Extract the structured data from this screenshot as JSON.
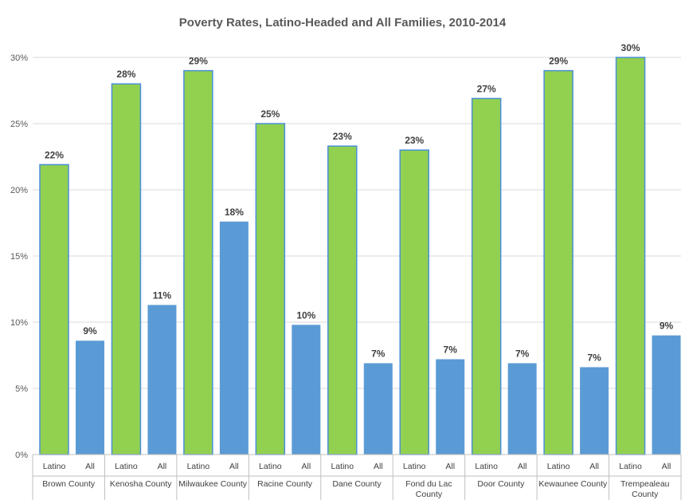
{
  "chart_data": {
    "type": "bar",
    "title": "Poverty Rates, Latino-Headed and All Families, 2010-2014",
    "groups": [
      "Brown County",
      "Kenosha County",
      "Milwaukee County",
      "Racine County",
      "Dane County",
      "Fond du Lac County",
      "Door County",
      "Kewaunee County",
      "Trempealeau County"
    ],
    "series": [
      {
        "name": "Latino",
        "color": "#92d050",
        "values": [
          21.9,
          28.0,
          29.0,
          25.0,
          23.3,
          23.0,
          26.9,
          29.0,
          30.0
        ],
        "labels": [
          "22%",
          "28%",
          "29%",
          "25%",
          "23%",
          "23%",
          "27%",
          "29%",
          "30%"
        ]
      },
      {
        "name": "All",
        "color": "#5b9bd5",
        "values": [
          8.6,
          11.3,
          17.6,
          9.8,
          6.9,
          7.2,
          6.9,
          6.6,
          9.0
        ],
        "labels": [
          "9%",
          "11%",
          "18%",
          "10%",
          "7%",
          "7%",
          "7%",
          "7%",
          "9%"
        ]
      }
    ],
    "ylim": [
      0,
      30
    ],
    "yticks": [
      "0%",
      "5%",
      "10%",
      "15%",
      "20%",
      "25%",
      "30%"
    ],
    "grid": true,
    "colors": {
      "latino": "#92d050",
      "all": "#5b9bd5",
      "latino_border": "#4a8fd8",
      "grid": "#d9d9d9"
    }
  }
}
